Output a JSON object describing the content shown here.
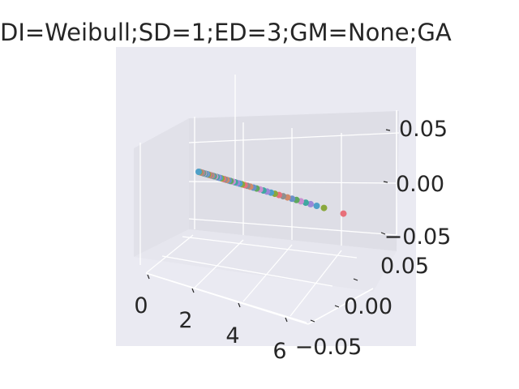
{
  "chart_data": {
    "type": "scatter",
    "projection": "3d",
    "title": "DI=Weibull;SD=1;ED=3;GM=None;GA",
    "xlabel": "",
    "ylabel": "",
    "zlabel": "",
    "x_ticks": [
      "0",
      "2",
      "4",
      "6"
    ],
    "y_ticks": [
      "0.05",
      "0.00",
      "−0.05"
    ],
    "z_ticks": [
      "0.05",
      "0.00",
      "−0.05"
    ],
    "xlim": [
      -0.3,
      6.6
    ],
    "ylim": [
      -0.06,
      0.06
    ],
    "zlim": [
      -0.06,
      0.06
    ],
    "grid": true,
    "legend": "none",
    "colors": [
      "#e8707a",
      "#8aa83d",
      "#4fa0c8",
      "#9b88d8",
      "#3fa8a0",
      "#c98fd0",
      "#5fa85f",
      "#6a90c8",
      "#d08a6a",
      "#8f8f8f"
    ],
    "points": [
      {
        "x": 0.0,
        "y": 0,
        "z": 0
      },
      {
        "x": 0.03,
        "y": 0,
        "z": 0
      },
      {
        "x": 0.06,
        "y": 0,
        "z": 0
      },
      {
        "x": 0.09,
        "y": 0,
        "z": 0
      },
      {
        "x": 0.12,
        "y": 0,
        "z": 0
      },
      {
        "x": 0.15,
        "y": 0,
        "z": 0
      },
      {
        "x": 0.18,
        "y": 0,
        "z": 0
      },
      {
        "x": 0.22,
        "y": 0,
        "z": 0
      },
      {
        "x": 0.26,
        "y": 0,
        "z": 0
      },
      {
        "x": 0.3,
        "y": 0,
        "z": 0
      },
      {
        "x": 0.34,
        "y": 0,
        "z": 0
      },
      {
        "x": 0.38,
        "y": 0,
        "z": 0
      },
      {
        "x": 0.42,
        "y": 0,
        "z": 0
      },
      {
        "x": 0.47,
        "y": 0,
        "z": 0
      },
      {
        "x": 0.52,
        "y": 0,
        "z": 0
      },
      {
        "x": 0.57,
        "y": 0,
        "z": 0
      },
      {
        "x": 0.62,
        "y": 0,
        "z": 0
      },
      {
        "x": 0.68,
        "y": 0,
        "z": 0
      },
      {
        "x": 0.74,
        "y": 0,
        "z": 0
      },
      {
        "x": 0.8,
        "y": 0,
        "z": 0
      },
      {
        "x": 0.86,
        "y": 0,
        "z": 0
      },
      {
        "x": 0.93,
        "y": 0,
        "z": 0
      },
      {
        "x": 1.0,
        "y": 0,
        "z": 0
      },
      {
        "x": 1.07,
        "y": 0,
        "z": 0
      },
      {
        "x": 1.15,
        "y": 0,
        "z": 0
      },
      {
        "x": 1.23,
        "y": 0,
        "z": 0
      },
      {
        "x": 1.31,
        "y": 0,
        "z": 0
      },
      {
        "x": 1.4,
        "y": 0,
        "z": 0
      },
      {
        "x": 1.49,
        "y": 0,
        "z": 0
      },
      {
        "x": 1.58,
        "y": 0,
        "z": 0
      },
      {
        "x": 1.68,
        "y": 0,
        "z": 0
      },
      {
        "x": 1.78,
        "y": 0,
        "z": 0
      },
      {
        "x": 1.89,
        "y": 0,
        "z": 0
      },
      {
        "x": 2.0,
        "y": 0,
        "z": 0
      },
      {
        "x": 2.12,
        "y": 0,
        "z": 0
      },
      {
        "x": 2.25,
        "y": 0,
        "z": 0
      },
      {
        "x": 2.38,
        "y": 0,
        "z": 0
      },
      {
        "x": 2.52,
        "y": 0,
        "z": 0
      },
      {
        "x": 2.66,
        "y": 0,
        "z": 0
      },
      {
        "x": 2.81,
        "y": 0,
        "z": 0
      },
      {
        "x": 2.97,
        "y": 0,
        "z": 0
      },
      {
        "x": 3.13,
        "y": 0,
        "z": 0
      },
      {
        "x": 3.3,
        "y": 0,
        "z": 0
      },
      {
        "x": 3.47,
        "y": 0,
        "z": 0
      },
      {
        "x": 3.65,
        "y": 0,
        "z": 0
      },
      {
        "x": 3.84,
        "y": 0,
        "z": 0
      },
      {
        "x": 4.02,
        "y": 0,
        "z": 0
      },
      {
        "x": 4.2,
        "y": 0,
        "z": 0
      },
      {
        "x": 4.4,
        "y": 0,
        "z": 0
      },
      {
        "x": 4.6,
        "y": 0,
        "z": 0
      },
      {
        "x": 4.85,
        "y": 0,
        "z": 0
      },
      {
        "x": 5.15,
        "y": 0,
        "z": 0
      },
      {
        "x": 5.95,
        "y": 0,
        "z": 0
      }
    ]
  }
}
